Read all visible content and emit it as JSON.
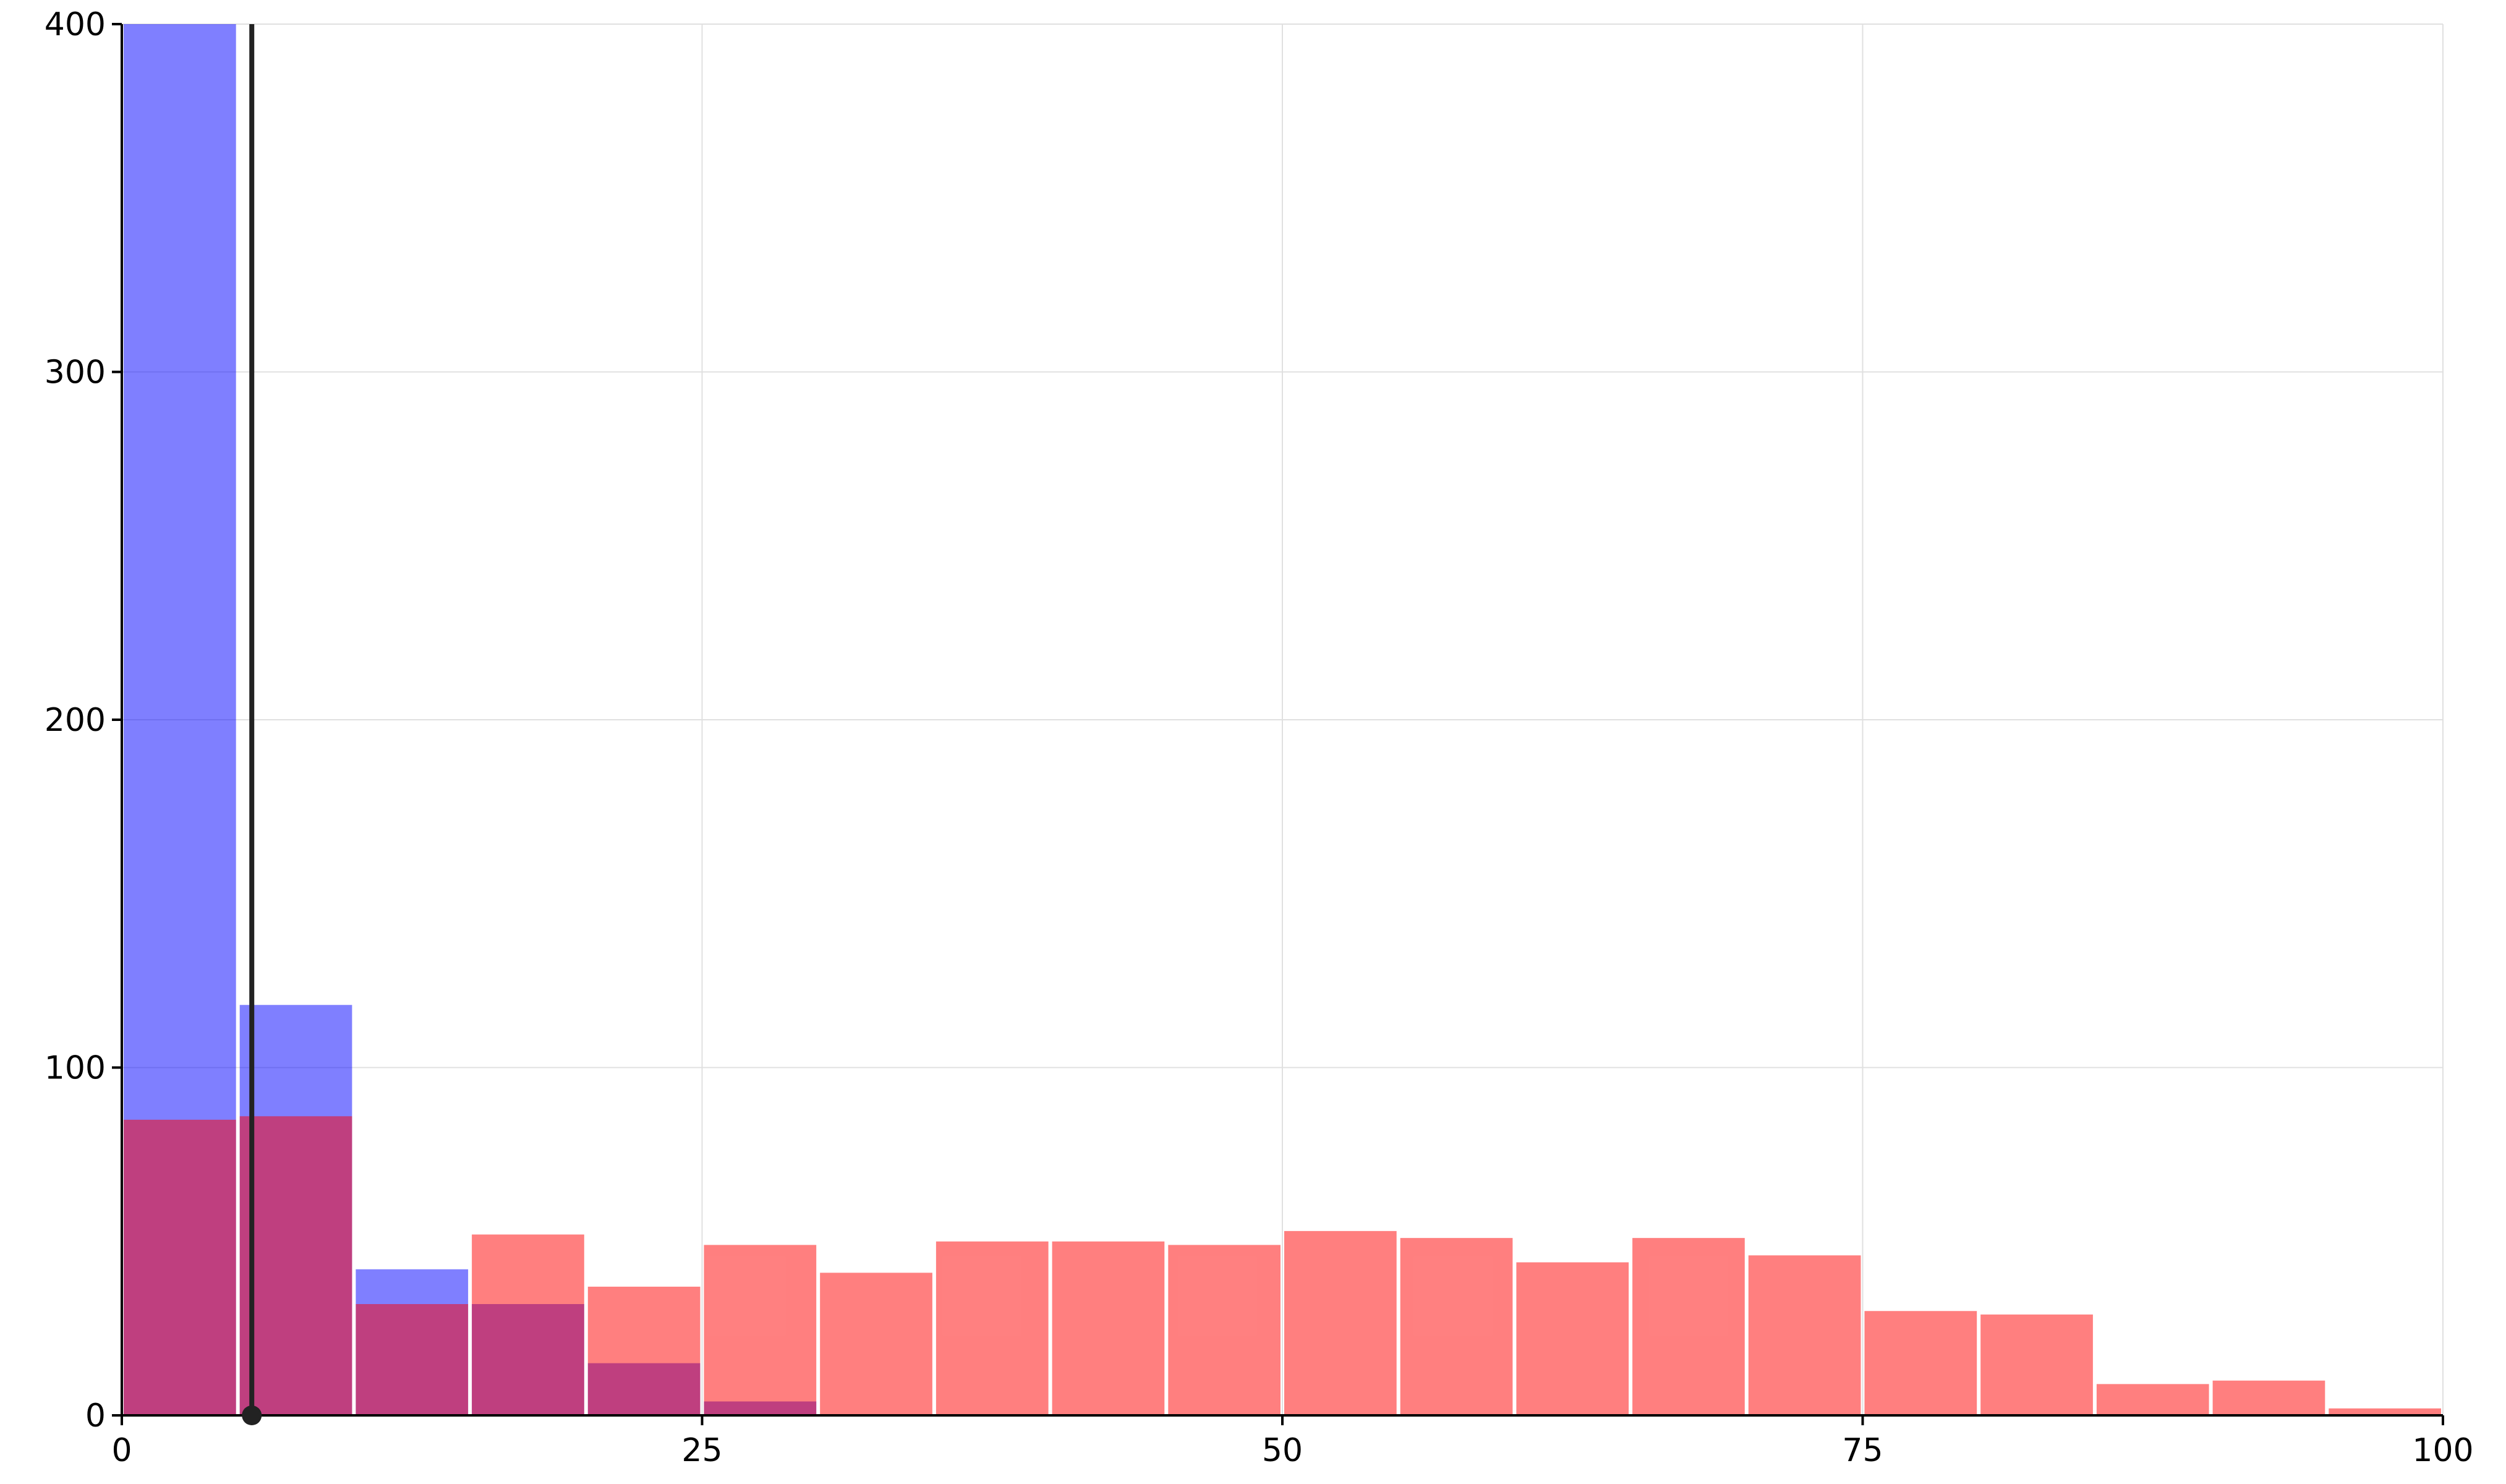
{
  "chart_data": {
    "type": "bar",
    "title": "",
    "xlabel": "",
    "ylabel": "",
    "xlim": [
      0,
      100
    ],
    "ylim": [
      0,
      400
    ],
    "x_ticks": [
      0,
      25,
      50,
      75,
      100
    ],
    "y_ticks": [
      0,
      100,
      200,
      300,
      400
    ],
    "x_tick_labels": [
      "0",
      "25",
      "50",
      "75",
      "100"
    ],
    "y_tick_labels": [
      "0",
      "100",
      "200",
      "300",
      "400"
    ],
    "grid": true,
    "bin_edges": [
      0,
      5,
      10,
      15,
      20,
      25,
      30,
      35,
      40,
      45,
      50,
      55,
      60,
      65,
      70,
      75,
      80,
      85,
      90,
      95,
      100
    ],
    "series": [
      {
        "color": "#0000ff",
        "opacity": 0.5,
        "values": [
          400,
          118,
          42,
          32,
          15,
          4,
          0,
          0,
          0,
          0,
          0,
          0,
          0,
          0,
          0,
          0,
          0,
          0,
          0,
          0
        ]
      },
      {
        "color": "#ff0000",
        "opacity": 0.5,
        "values": [
          85,
          86,
          32,
          52,
          37,
          49,
          41,
          50,
          50,
          49,
          53,
          51,
          44,
          51,
          46,
          30,
          29,
          9,
          10,
          2
        ]
      }
    ],
    "vline": {
      "x": 5.6,
      "color": "#222222"
    },
    "colors": {
      "axis": "#000000",
      "grid": "#e0e0e0",
      "bar_stroke": "#ffffff"
    }
  }
}
